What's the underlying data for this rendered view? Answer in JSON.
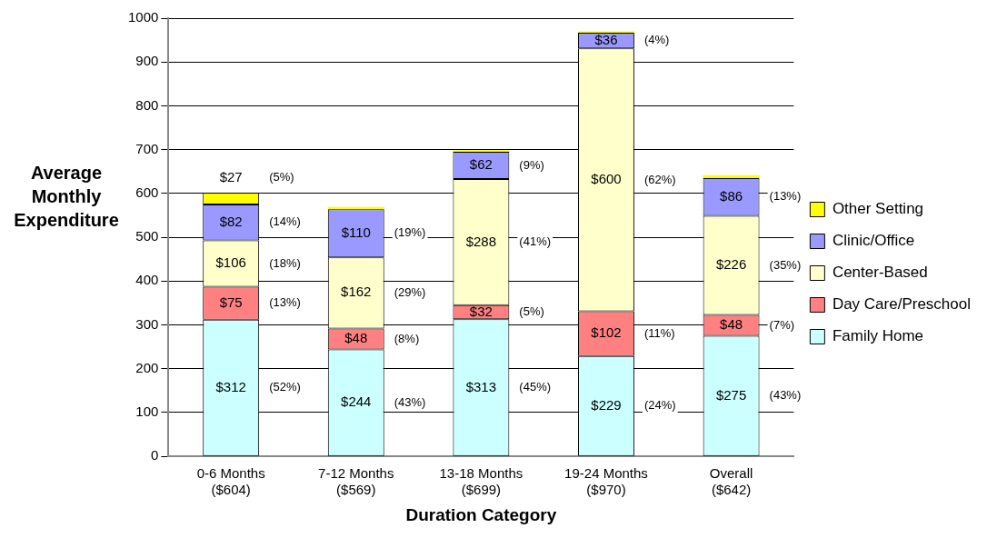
{
  "chart_data": {
    "type": "bar",
    "stacked": true,
    "xlabel": "Duration Category",
    "ylabel": "Average Monthly Expenditure",
    "categories": [
      "0-6 Months\n($604)",
      "7-12 Months\n($569)",
      "13-18 Months\n($699)",
      "19-24 Months\n($970)",
      "Overall\n($642)"
    ],
    "ylim": [
      0,
      1000
    ],
    "yticks": [
      0,
      100,
      200,
      300,
      400,
      500,
      600,
      700,
      800,
      900,
      1000
    ],
    "grid": "y",
    "legend": "right",
    "series": [
      {
        "name": "Family Home",
        "color": "#ccffff",
        "values": [
          312,
          244,
          313,
          229,
          275
        ],
        "value_labels": [
          "$312",
          "$244",
          "$313",
          "$229",
          "$275"
        ]
      },
      {
        "name": "Day Care/Preschool",
        "color": "#ff8080",
        "values": [
          75,
          48,
          32,
          102,
          48
        ],
        "value_labels": [
          "$75",
          "$48",
          "$32",
          "$102",
          "$48"
        ]
      },
      {
        "name": "Center-Based",
        "color": "#ffffcc",
        "values": [
          106,
          162,
          288,
          600,
          226
        ],
        "value_labels": [
          "$106",
          "$162",
          "$288",
          "$600",
          "$226"
        ]
      },
      {
        "name": "Clinic/Office",
        "color": "#9999ff",
        "values": [
          82,
          110,
          62,
          36,
          86
        ],
        "value_labels": [
          "$82",
          "$110",
          "$62",
          "$36",
          "$86"
        ]
      },
      {
        "name": "Other Setting",
        "color": "#ffff00",
        "values": [
          27,
          5,
          4,
          3,
          7
        ],
        "value_labels": [
          "$27",
          null,
          null,
          null,
          null
        ]
      }
    ],
    "annotations": [
      "(52%)",
      "(13%)",
      "(18%)",
      "(14%)",
      "(5%)",
      "(43%)",
      "(8%)",
      "(29%)",
      "(19%)",
      "(45%)",
      "(5%)",
      "(41%)",
      "(9%)",
      "(24%)",
      "(11%)",
      "(62%)",
      "(4%)",
      "(43%)",
      "(7%)",
      "(35%)",
      "(13%)"
    ]
  }
}
